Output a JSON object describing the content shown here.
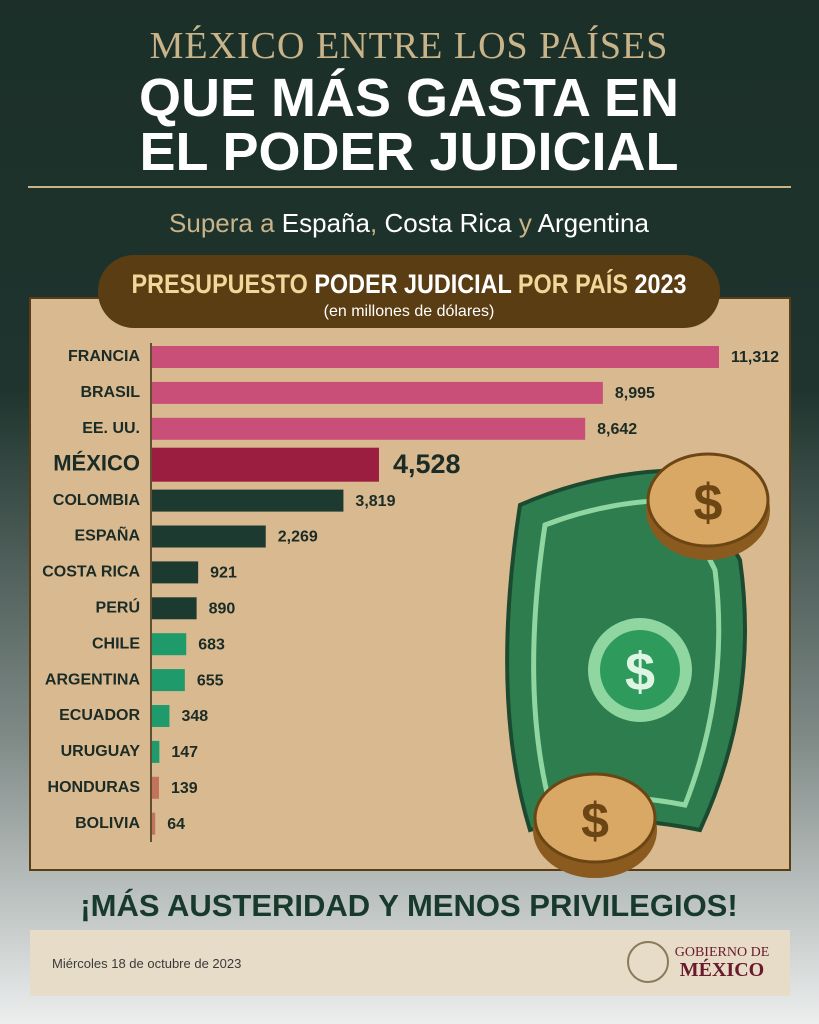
{
  "chart_data": {
    "type": "bar",
    "orientation": "horizontal",
    "supertitle": "MÉXICO ENTRE LOS PAÍSES",
    "title": [
      "QUE MÁS GASTA EN",
      "EL PODER JUDICIAL"
    ],
    "subtitle": [
      "Supera a",
      "España",
      ",",
      "Costa Rica",
      "y",
      "Argentina"
    ],
    "chart_title": [
      "PRESUPUESTO",
      "PODER JUDICIAL",
      "POR PAÍS",
      "2023"
    ],
    "chart_subtitle": "(en millones de dólares)",
    "categories": [
      "FRANCIA",
      "BRASIL",
      "EE. UU.",
      "MÉXICO",
      "COLOMBIA",
      "ESPAÑA",
      "COSTA RICA",
      "PERÚ",
      "CHILE",
      "ARGENTINA",
      "ECUADOR",
      "URUGUAY",
      "HONDURAS",
      "BOLIVIA"
    ],
    "values": [
      11312,
      8995,
      8642,
      4528,
      3819,
      2269,
      921,
      890,
      683,
      655,
      348,
      147,
      139,
      64
    ],
    "value_labels": [
      "11,312",
      "8,995",
      "8,642",
      "4,528",
      "3,819",
      "2,269",
      "921",
      "890",
      "683",
      "655",
      "348",
      "147",
      "139",
      "64"
    ],
    "colors": [
      "#c94f79",
      "#c94f79",
      "#c94f79",
      "#9b1d40",
      "#1c3a30",
      "#1c3a30",
      "#1c3a30",
      "#1c3a30",
      "#1f9a6b",
      "#1f9a6b",
      "#1f9a6b",
      "#1f9a6b",
      "#c2735a",
      "#c2735a"
    ],
    "highlight": "MÉXICO",
    "footer": "¡MÁS AUSTERIDAD Y MENOS PRIVILEGIOS!",
    "date": "Miércoles 18 de octubre de 2023",
    "logo": [
      "GOBIERNO DE",
      "MÉXICO"
    ]
  }
}
